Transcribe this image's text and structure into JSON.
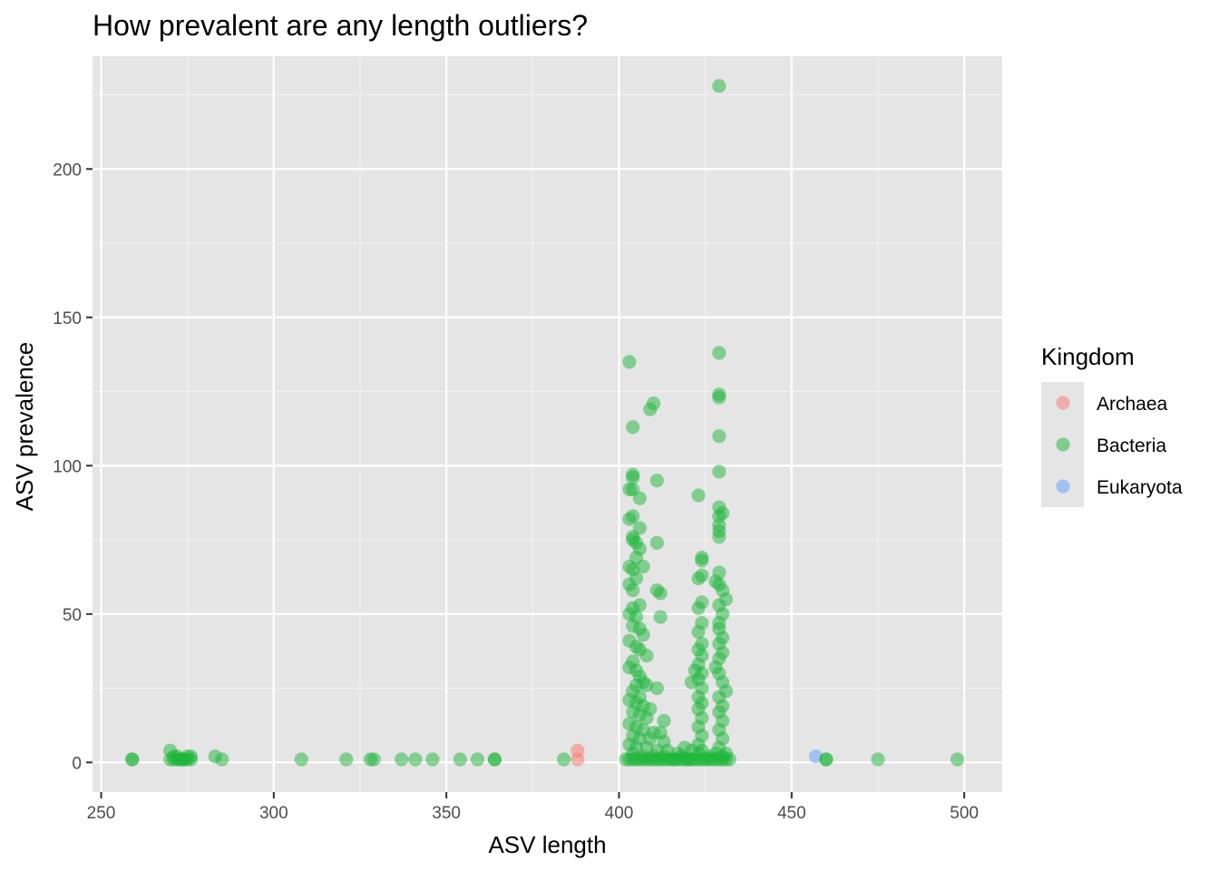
{
  "chart_data": {
    "type": "scatter",
    "title": "How prevalent are any length outliers?",
    "xlabel": "ASV length",
    "ylabel": "ASV prevalence",
    "xlim": [
      247.5,
      511
    ],
    "ylim": [
      -10,
      238
    ],
    "x_ticks": [
      250,
      300,
      350,
      400,
      450,
      500
    ],
    "y_ticks": [
      0,
      50,
      100,
      150,
      200
    ],
    "x_tick_labels": [
      "250",
      "300",
      "350",
      "400",
      "450",
      "500"
    ],
    "y_tick_labels": [
      "0",
      "50",
      "100",
      "150",
      "200"
    ],
    "grid": true,
    "panel_background": "#e5e5e5",
    "legend": {
      "title": "Kingdom",
      "position": "right",
      "entries": [
        {
          "label": "Archaea",
          "color": "#f8766d"
        },
        {
          "label": "Bacteria",
          "color": "#1eb53a"
        },
        {
          "label": "Eukaryota",
          "color": "#619cff"
        }
      ]
    },
    "series": [
      {
        "name": "Archaea",
        "color": "#f8766d",
        "points": [
          [
            388,
            4
          ],
          [
            388,
            1
          ]
        ]
      },
      {
        "name": "Eukaryota",
        "color": "#619cff",
        "points": [
          [
            457,
            2
          ]
        ]
      },
      {
        "name": "Bacteria",
        "color": "#1eb53a",
        "points": [
          [
            259,
            1
          ],
          [
            259,
            1
          ],
          [
            270,
            4
          ],
          [
            270,
            1
          ],
          [
            271,
            2
          ],
          [
            271,
            1
          ],
          [
            272,
            1
          ],
          [
            272,
            2
          ],
          [
            273,
            1
          ],
          [
            273,
            1
          ],
          [
            274,
            1
          ],
          [
            274,
            1
          ],
          [
            275,
            1
          ],
          [
            275,
            2
          ],
          [
            276,
            1
          ],
          [
            276,
            2
          ],
          [
            283,
            2
          ],
          [
            285,
            1
          ],
          [
            308,
            1
          ],
          [
            321,
            1
          ],
          [
            328,
            1
          ],
          [
            329,
            1
          ],
          [
            337,
            1
          ],
          [
            341,
            1
          ],
          [
            346,
            1
          ],
          [
            354,
            1
          ],
          [
            359,
            1
          ],
          [
            364,
            1
          ],
          [
            364,
            1
          ],
          [
            384,
            1
          ],
          [
            403,
            135
          ],
          [
            404,
            113
          ],
          [
            409,
            119
          ],
          [
            410,
            121
          ],
          [
            404,
            97
          ],
          [
            404,
            96
          ],
          [
            403,
            92
          ],
          [
            404,
            92
          ],
          [
            406,
            89
          ],
          [
            411,
            95
          ],
          [
            403,
            82
          ],
          [
            404,
            83
          ],
          [
            406,
            79
          ],
          [
            404,
            76
          ],
          [
            404,
            75
          ],
          [
            405,
            74
          ],
          [
            411,
            74
          ],
          [
            406,
            72
          ],
          [
            405,
            69
          ],
          [
            403,
            66
          ],
          [
            404,
            65
          ],
          [
            407,
            66
          ],
          [
            405,
            62
          ],
          [
            403,
            60
          ],
          [
            404,
            58
          ],
          [
            411,
            58
          ],
          [
            412,
            57
          ],
          [
            406,
            53
          ],
          [
            404,
            52
          ],
          [
            403,
            50
          ],
          [
            405,
            49
          ],
          [
            412,
            49
          ],
          [
            404,
            46
          ],
          [
            406,
            45
          ],
          [
            407,
            43
          ],
          [
            403,
            41
          ],
          [
            405,
            39
          ],
          [
            406,
            38
          ],
          [
            408,
            36
          ],
          [
            404,
            34
          ],
          [
            403,
            32
          ],
          [
            405,
            31
          ],
          [
            406,
            29
          ],
          [
            407,
            27
          ],
          [
            405,
            26
          ],
          [
            408,
            26
          ],
          [
            411,
            25
          ],
          [
            404,
            24
          ],
          [
            406,
            22
          ],
          [
            403,
            21
          ],
          [
            405,
            20
          ],
          [
            407,
            19
          ],
          [
            409,
            18
          ],
          [
            404,
            17
          ],
          [
            406,
            16
          ],
          [
            408,
            15
          ],
          [
            413,
            14
          ],
          [
            403,
            13
          ],
          [
            405,
            12
          ],
          [
            407,
            11
          ],
          [
            410,
            10
          ],
          [
            412,
            10
          ],
          [
            404,
            9
          ],
          [
            406,
            8
          ],
          [
            409,
            8
          ],
          [
            413,
            7
          ],
          [
            403,
            6
          ],
          [
            405,
            5
          ],
          [
            408,
            5
          ],
          [
            411,
            4
          ],
          [
            414,
            4
          ],
          [
            417,
            3
          ],
          [
            419,
            5
          ],
          [
            421,
            4
          ],
          [
            423,
            3
          ],
          [
            426,
            2
          ],
          [
            428,
            3
          ],
          [
            430,
            2
          ],
          [
            404,
            3
          ],
          [
            407,
            2
          ],
          [
            410,
            2
          ],
          [
            413,
            2
          ],
          [
            416,
            1
          ],
          [
            418,
            2
          ],
          [
            420,
            1
          ],
          [
            402,
            1
          ],
          [
            403,
            1
          ],
          [
            404,
            1
          ],
          [
            405,
            1
          ],
          [
            406,
            1
          ],
          [
            407,
            1
          ],
          [
            408,
            1
          ],
          [
            409,
            1
          ],
          [
            410,
            1
          ],
          [
            411,
            1
          ],
          [
            412,
            1
          ],
          [
            413,
            1
          ],
          [
            414,
            1
          ],
          [
            415,
            1
          ],
          [
            416,
            1
          ],
          [
            417,
            1
          ],
          [
            418,
            1
          ],
          [
            419,
            1
          ],
          [
            420,
            1
          ],
          [
            421,
            1
          ],
          [
            422,
            1
          ],
          [
            423,
            1
          ],
          [
            424,
            1
          ],
          [
            425,
            1
          ],
          [
            426,
            1
          ],
          [
            427,
            1
          ],
          [
            428,
            1
          ],
          [
            429,
            1
          ],
          [
            430,
            1
          ],
          [
            431,
            1
          ],
          [
            432,
            1
          ],
          [
            423,
            90
          ],
          [
            424,
            69
          ],
          [
            424,
            68
          ],
          [
            424,
            63
          ],
          [
            423,
            62
          ],
          [
            424,
            54
          ],
          [
            423,
            52
          ],
          [
            424,
            47
          ],
          [
            423,
            44
          ],
          [
            424,
            40
          ],
          [
            423,
            38
          ],
          [
            424,
            36
          ],
          [
            423,
            33
          ],
          [
            422,
            31
          ],
          [
            424,
            30
          ],
          [
            423,
            28
          ],
          [
            421,
            27
          ],
          [
            424,
            25
          ],
          [
            423,
            22
          ],
          [
            424,
            20
          ],
          [
            423,
            18
          ],
          [
            424,
            15
          ],
          [
            423,
            12
          ],
          [
            424,
            9
          ],
          [
            423,
            6
          ],
          [
            424,
            4
          ],
          [
            429,
            228
          ],
          [
            429,
            138
          ],
          [
            429,
            124
          ],
          [
            429,
            123
          ],
          [
            429,
            110
          ],
          [
            429,
            98
          ],
          [
            429,
            86
          ],
          [
            430,
            84
          ],
          [
            429,
            83
          ],
          [
            429,
            80
          ],
          [
            429,
            78
          ],
          [
            429,
            76
          ],
          [
            429,
            64
          ],
          [
            428,
            61
          ],
          [
            429,
            60
          ],
          [
            430,
            58
          ],
          [
            431,
            55
          ],
          [
            429,
            53
          ],
          [
            430,
            50
          ],
          [
            429,
            47
          ],
          [
            429,
            45
          ],
          [
            430,
            42
          ],
          [
            429,
            40
          ],
          [
            430,
            37
          ],
          [
            429,
            35
          ],
          [
            428,
            32
          ],
          [
            429,
            30
          ],
          [
            430,
            27
          ],
          [
            431,
            24
          ],
          [
            429,
            22
          ],
          [
            430,
            19
          ],
          [
            429,
            17
          ],
          [
            430,
            14
          ],
          [
            429,
            11
          ],
          [
            430,
            8
          ],
          [
            429,
            5
          ],
          [
            431,
            3
          ],
          [
            460,
            1
          ],
          [
            460,
            1
          ],
          [
            475,
            1
          ],
          [
            498,
            1
          ]
        ]
      }
    ]
  }
}
